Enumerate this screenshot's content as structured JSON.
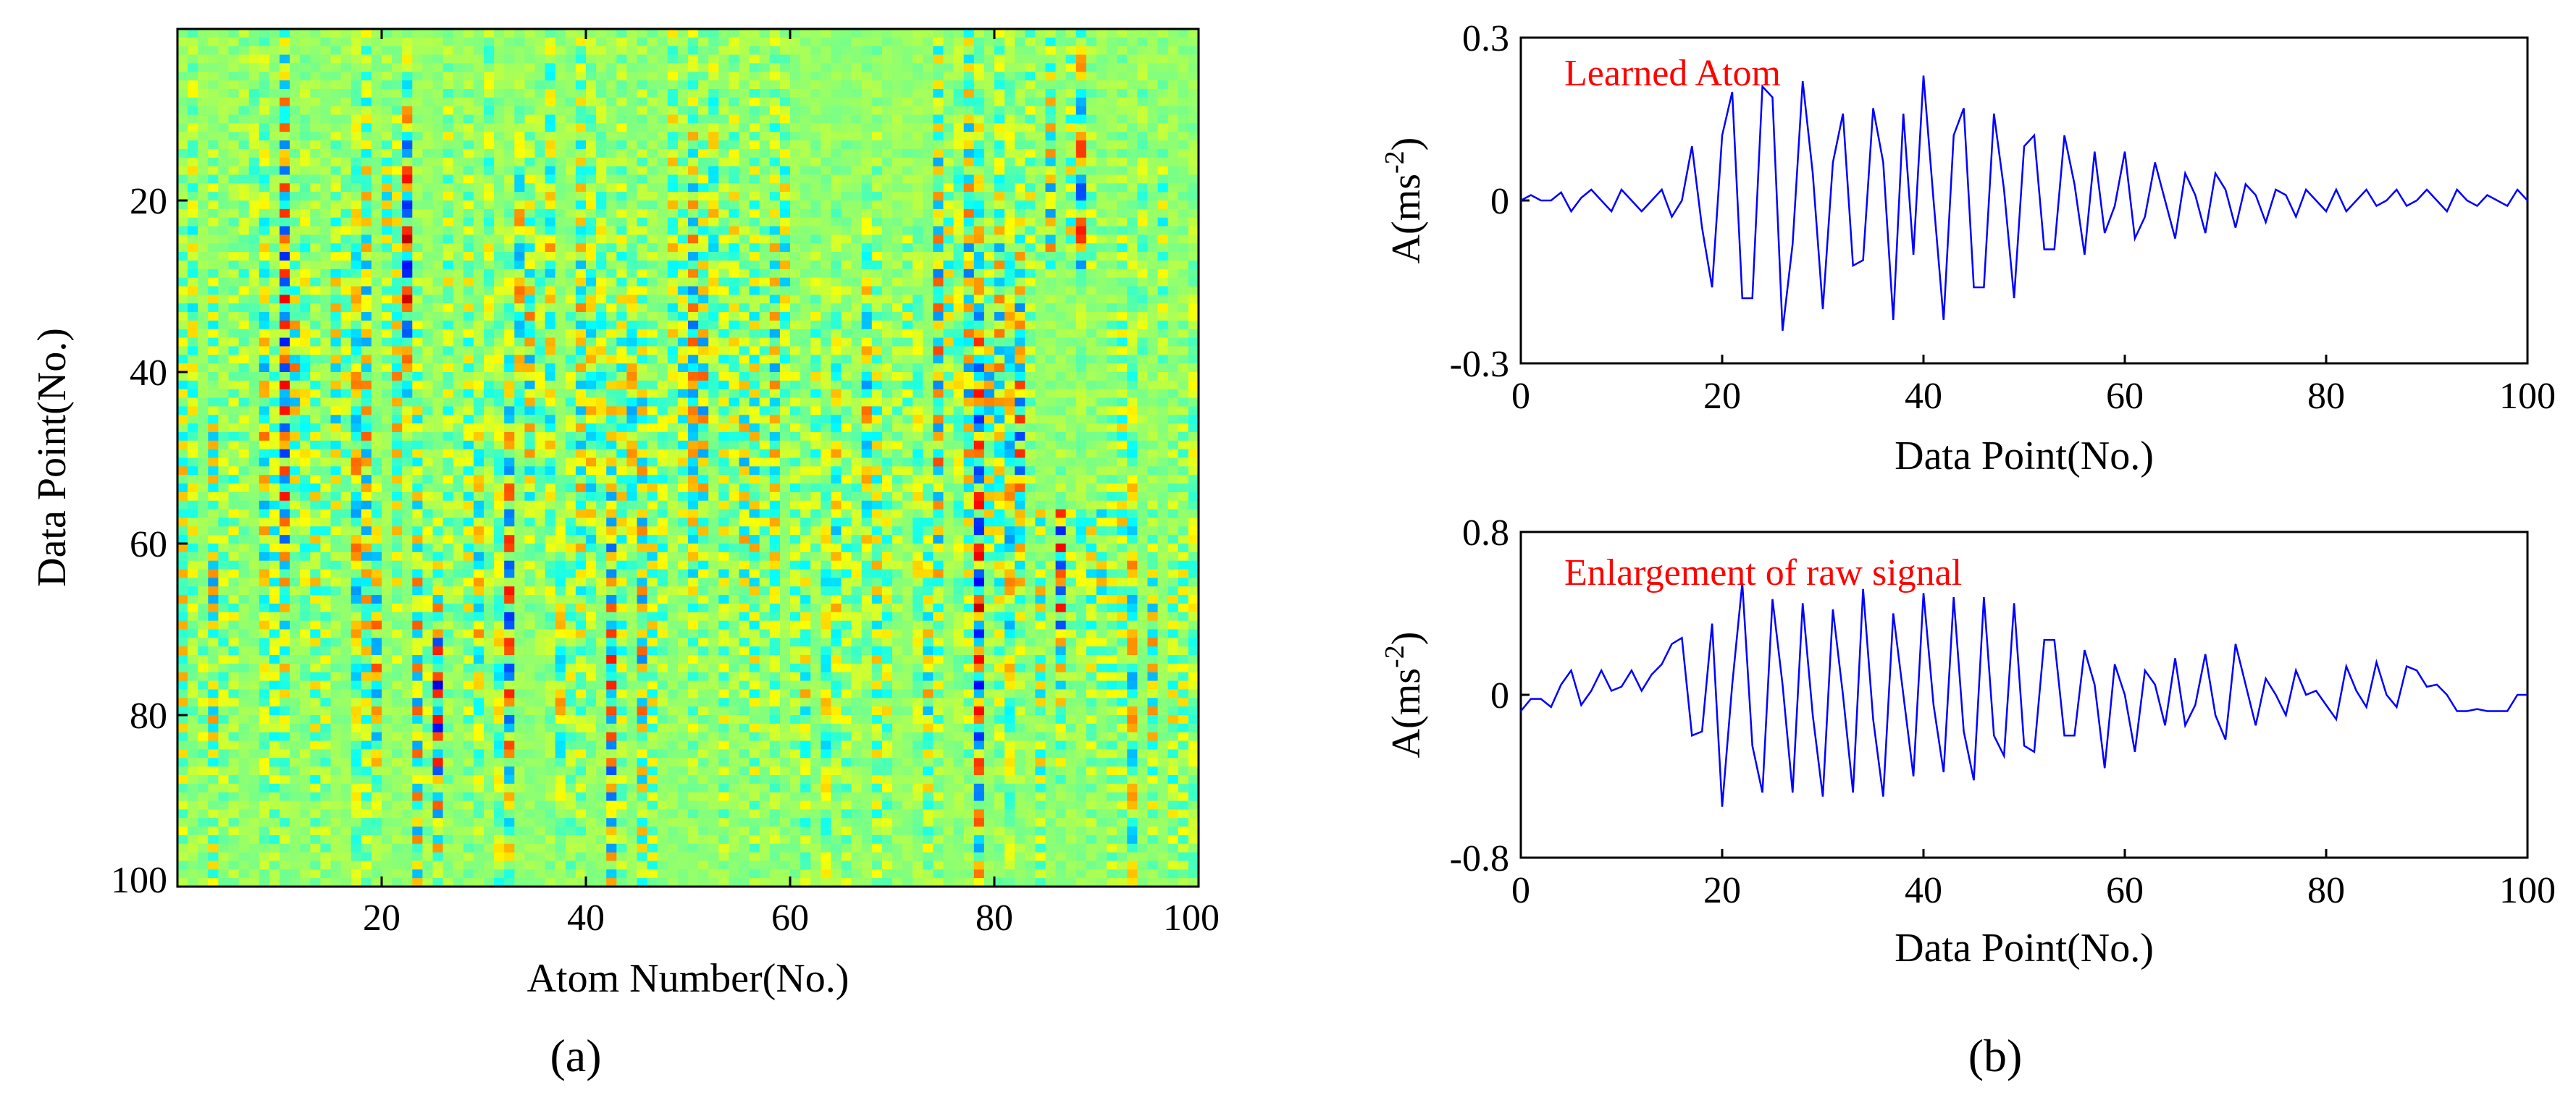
{
  "panel_labels": {
    "a": "(a)",
    "b": "(b)"
  },
  "colors": {
    "line": "#0000ff",
    "annotation": "#ff0000",
    "axis": "#000000"
  },
  "chart_data": [
    {
      "type": "heatmap",
      "id": "a",
      "xlabel": "Atom Number(No.)",
      "ylabel": "Data Point(No.)",
      "xticks": [
        "20",
        "40",
        "60",
        "80",
        "100"
      ],
      "yticks": [
        "20",
        "40",
        "60",
        "80",
        "100"
      ],
      "xlim": [
        0,
        100
      ],
      "ylim": [
        0,
        100
      ],
      "grid": false,
      "colormap": "jet",
      "zlim": [
        -1,
        1
      ],
      "n_cols": 100,
      "n_rows": 100
    },
    {
      "type": "line",
      "id": "b-top",
      "annotation": "Learned Atom",
      "xlabel": "Data Point(No.)",
      "ylabel_base": "A(ms",
      "ylabel_sup": "-2",
      "ylabel_close": ")",
      "xticks": [
        "0",
        "20",
        "40",
        "60",
        "80",
        "100"
      ],
      "yticks": [
        "0.3",
        "0",
        "-0.3"
      ],
      "xlim": [
        0,
        100
      ],
      "ylim": [
        -0.3,
        0.3
      ],
      "grid": false,
      "x": [
        0,
        1,
        2,
        3,
        4,
        5,
        6,
        7,
        8,
        9,
        10,
        11,
        12,
        13,
        14,
        15,
        16,
        17,
        18,
        19,
        20,
        21,
        22,
        23,
        24,
        25,
        26,
        27,
        28,
        29,
        30,
        31,
        32,
        33,
        34,
        35,
        36,
        37,
        38,
        39,
        40,
        41,
        42,
        43,
        44,
        45,
        46,
        47,
        48,
        49,
        50,
        51,
        52,
        53,
        54,
        55,
        56,
        57,
        58,
        59,
        60,
        61,
        62,
        63,
        64,
        65,
        66,
        67,
        68,
        69,
        70,
        71,
        72,
        73,
        74,
        75,
        76,
        77,
        78,
        79,
        80,
        81,
        82,
        83,
        84,
        85,
        86,
        87,
        88,
        89,
        90,
        91,
        92,
        93,
        94,
        95,
        96,
        97,
        98,
        99,
        100
      ],
      "y": [
        0.0,
        0.01,
        0.0,
        0.0,
        0.015,
        -0.02,
        0.005,
        0.02,
        0.0,
        -0.02,
        0.02,
        0.0,
        -0.02,
        0.0,
        0.02,
        -0.03,
        0.0,
        0.1,
        -0.05,
        -0.16,
        0.12,
        0.2,
        -0.18,
        -0.18,
        0.21,
        0.19,
        -0.24,
        -0.08,
        0.22,
        0.05,
        -0.2,
        0.07,
        0.16,
        -0.12,
        -0.11,
        0.17,
        0.07,
        -0.22,
        0.16,
        -0.1,
        0.23,
        0.0,
        -0.22,
        0.12,
        0.17,
        -0.16,
        -0.16,
        0.16,
        0.02,
        -0.18,
        0.1,
        0.12,
        -0.09,
        -0.09,
        0.12,
        0.03,
        -0.1,
        0.09,
        -0.06,
        -0.01,
        0.09,
        -0.07,
        -0.03,
        0.07,
        0.0,
        -0.07,
        0.05,
        0.01,
        -0.06,
        0.05,
        0.02,
        -0.05,
        0.03,
        0.01,
        -0.04,
        0.02,
        0.01,
        -0.03,
        0.02,
        0.0,
        -0.02,
        0.02,
        -0.02,
        0.0,
        0.02,
        -0.01,
        0.0,
        0.02,
        -0.01,
        0.0,
        0.02,
        0.0,
        -0.02,
        0.02,
        0.0,
        -0.01,
        0.01,
        0.0,
        -0.01,
        0.02,
        0.0
      ]
    },
    {
      "type": "line",
      "id": "b-bottom",
      "annotation": "Enlargement of raw signal",
      "xlabel": "Data Point(No.)",
      "ylabel_base": "A(ms",
      "ylabel_sup": "-2",
      "ylabel_close": ")",
      "xticks": [
        "0",
        "20",
        "40",
        "60",
        "80",
        "100"
      ],
      "yticks": [
        "0.8",
        "0",
        "-0.8"
      ],
      "xlim": [
        0,
        100
      ],
      "ylim": [
        -0.8,
        0.8
      ],
      "grid": false,
      "x": [
        0,
        1,
        2,
        3,
        4,
        5,
        6,
        7,
        8,
        9,
        10,
        11,
        12,
        13,
        14,
        15,
        16,
        17,
        18,
        19,
        20,
        21,
        22,
        23,
        24,
        25,
        26,
        27,
        28,
        29,
        30,
        31,
        32,
        33,
        34,
        35,
        36,
        37,
        38,
        39,
        40,
        41,
        42,
        43,
        44,
        45,
        46,
        47,
        48,
        49,
        50,
        51,
        52,
        53,
        54,
        55,
        56,
        57,
        58,
        59,
        60,
        61,
        62,
        63,
        64,
        65,
        66,
        67,
        68,
        69,
        70,
        71,
        72,
        73,
        74,
        75,
        76,
        77,
        78,
        79,
        80,
        81,
        82,
        83,
        84,
        85,
        86,
        87,
        88,
        89,
        90,
        91,
        92,
        93,
        94,
        95,
        96,
        97,
        98,
        99,
        100
      ],
      "y": [
        -0.08,
        -0.02,
        -0.02,
        -0.06,
        0.05,
        0.12,
        -0.05,
        0.02,
        0.12,
        0.02,
        0.04,
        0.12,
        0.02,
        0.1,
        0.15,
        0.25,
        0.28,
        -0.2,
        -0.18,
        0.35,
        -0.55,
        0.05,
        0.55,
        -0.25,
        -0.48,
        0.47,
        0.05,
        -0.48,
        0.45,
        -0.1,
        -0.5,
        0.42,
        0.0,
        -0.48,
        0.52,
        -0.12,
        -0.5,
        0.4,
        0.0,
        -0.4,
        0.5,
        -0.05,
        -0.38,
        0.48,
        -0.18,
        -0.42,
        0.48,
        -0.2,
        -0.3,
        0.45,
        -0.25,
        -0.28,
        0.27,
        0.27,
        -0.2,
        -0.2,
        0.22,
        0.05,
        -0.36,
        0.15,
        0.0,
        -0.28,
        0.12,
        0.05,
        -0.15,
        0.18,
        -0.15,
        -0.05,
        0.2,
        -0.1,
        -0.22,
        0.25,
        0.05,
        -0.15,
        0.08,
        0.0,
        -0.1,
        0.12,
        0.0,
        0.02,
        -0.05,
        -0.12,
        0.14,
        0.02,
        -0.06,
        0.16,
        0.0,
        -0.06,
        0.14,
        0.12,
        0.04,
        0.05,
        0.0,
        -0.08,
        -0.08,
        -0.07,
        -0.08,
        -0.08,
        -0.08,
        0.0,
        0.0
      ]
    }
  ]
}
